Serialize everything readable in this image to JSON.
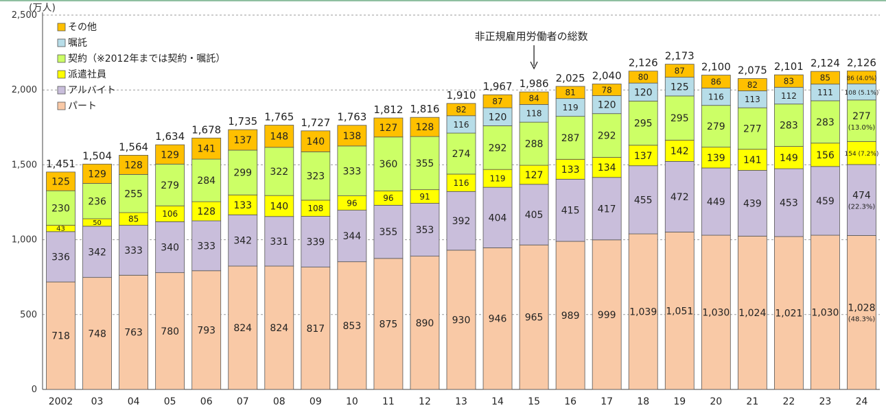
{
  "chart_data": {
    "type": "bar",
    "stacked": true,
    "title": "",
    "xlabel": "",
    "ylabel": "",
    "yunit": "(万人)",
    "ylim": [
      0,
      2500
    ],
    "yticks": [
      "0",
      "500",
      "1,000",
      "1,500",
      "2,000",
      "2,500"
    ],
    "grid": true,
    "legend_position": "top-left",
    "annotation": "非正規雇用労働者の総数",
    "annotation_category": "15",
    "categories": [
      "2002",
      "03",
      "04",
      "05",
      "06",
      "07",
      "08",
      "09",
      "10",
      "11",
      "12",
      "13",
      "14",
      "15",
      "16",
      "17",
      "18",
      "19",
      "20",
      "21",
      "22",
      "23",
      "24"
    ],
    "totals": [
      "1,451",
      "1,504",
      "1,564",
      "1,634",
      "1,678",
      "1,735",
      "1,765",
      "1,727",
      "1,763",
      "1,812",
      "1,816",
      "1,910",
      "1,967",
      "1,986",
      "2,025",
      "2,040",
      "2,126",
      "2,173",
      "2,100",
      "2,075",
      "2,101",
      "2,124",
      "2,126"
    ],
    "series": [
      {
        "name": "パート",
        "color": "#f9c9a6",
        "values": [
          718,
          748,
          763,
          780,
          793,
          824,
          824,
          817,
          853,
          875,
          890,
          930,
          946,
          965,
          989,
          999,
          1039,
          1051,
          1030,
          1024,
          1021,
          1030,
          1028
        ],
        "labels": [
          "718",
          "748",
          "763",
          "780",
          "793",
          "824",
          "824",
          "817",
          "853",
          "875",
          "890",
          "930",
          "946",
          "965",
          "989",
          "999",
          "1,039",
          "1,051",
          "1,030",
          "1,024",
          "1,021",
          "1,030",
          "1,028"
        ]
      },
      {
        "name": "アルバイト",
        "color": "#c9bedb",
        "values": [
          336,
          342,
          333,
          340,
          333,
          342,
          331,
          339,
          344,
          355,
          353,
          392,
          404,
          405,
          415,
          417,
          455,
          472,
          449,
          439,
          453,
          459,
          474
        ],
        "labels": [
          "336",
          "342",
          "333",
          "340",
          "333",
          "342",
          "331",
          "339",
          "344",
          "355",
          "353",
          "392",
          "404",
          "405",
          "415",
          "417",
          "455",
          "472",
          "449",
          "439",
          "453",
          "459",
          "474"
        ]
      },
      {
        "name": "派遣社員",
        "color": "#ffff00",
        "values": [
          43,
          50,
          85,
          106,
          128,
          133,
          140,
          108,
          96,
          96,
          91,
          116,
          119,
          127,
          133,
          134,
          137,
          142,
          139,
          141,
          149,
          156,
          154
        ],
        "labels": [
          "43",
          "50",
          "85",
          "106",
          "128",
          "133",
          "140",
          "108",
          "96",
          "96",
          "91",
          "116",
          "119",
          "127",
          "133",
          "134",
          "137",
          "142",
          "139",
          "141",
          "149",
          "156",
          "154"
        ]
      },
      {
        "name": "契約（※2012年までは契約・嘱託）",
        "color": "#ccff66",
        "values": [
          230,
          236,
          255,
          279,
          284,
          299,
          322,
          323,
          333,
          360,
          355,
          274,
          292,
          288,
          287,
          292,
          295,
          295,
          279,
          277,
          283,
          283,
          277
        ],
        "labels": [
          "230",
          "236",
          "255",
          "279",
          "284",
          "299",
          "322",
          "323",
          "333",
          "360",
          "355",
          "274",
          "292",
          "288",
          "287",
          "292",
          "295",
          "295",
          "279",
          "277",
          "283",
          "283",
          "277"
        ]
      },
      {
        "name": "嘱託",
        "color": "#b7dde8",
        "values": [
          0,
          0,
          0,
          0,
          0,
          0,
          0,
          0,
          0,
          0,
          0,
          116,
          120,
          118,
          119,
          120,
          120,
          125,
          116,
          113,
          112,
          111,
          108
        ],
        "labels": [
          "",
          "",
          "",
          "",
          "",
          "",
          "",
          "",
          "",
          "",
          "",
          "116",
          "120",
          "118",
          "119",
          "120",
          "120",
          "125",
          "116",
          "113",
          "112",
          "111",
          "108"
        ]
      },
      {
        "name": "その他",
        "color": "#ffc000",
        "values": [
          125,
          129,
          128,
          129,
          141,
          137,
          148,
          140,
          138,
          127,
          128,
          82,
          87,
          84,
          81,
          78,
          80,
          87,
          86,
          82,
          83,
          85,
          86
        ],
        "labels": [
          "125",
          "129",
          "128",
          "129",
          "141",
          "137",
          "148",
          "140",
          "138",
          "127",
          "128",
          "82",
          "87",
          "84",
          "81",
          "78",
          "80",
          "87",
          "86",
          "82",
          "83",
          "85",
          "86"
        ]
      }
    ],
    "last_bar_shares": {
      "パート": "(48.3%)",
      "アルバイト": "(22.3%)",
      "派遣社員": "(7.2%)",
      "契約（※2012年までは契約・嘱託）": "(13.0%)",
      "嘱託": "(5.1%)",
      "その他": "(4.0%)"
    }
  }
}
